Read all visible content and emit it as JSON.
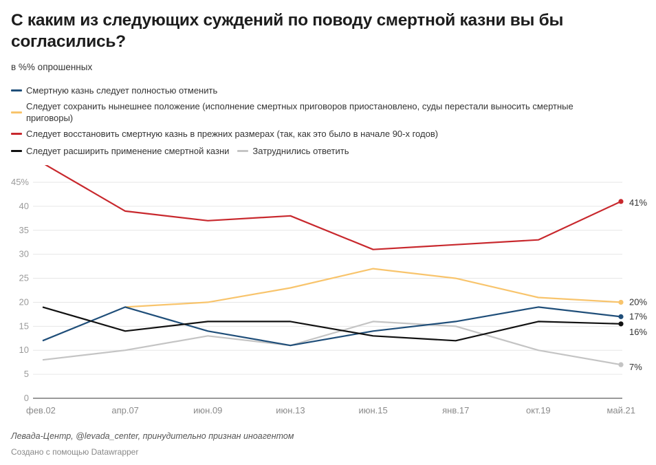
{
  "header": {
    "title": "С каким из следующих суждений по поводу смертной казни вы бы согласились?",
    "subtitle": "в %% опрошенных"
  },
  "footer": {
    "source": "Левада-Центр, @levada_center, принудительно признан иноагентом",
    "credit": "Создано с помощью Datawrapper"
  },
  "chart_data": {
    "type": "line",
    "title": "С каким из следующих суждений по поводу смертной казни вы бы согласились?",
    "subtitle": "в %% опрошенных",
    "xlabel": "",
    "ylabel": "",
    "ylim": [
      0,
      45
    ],
    "yticks": [
      0,
      5,
      10,
      15,
      20,
      25,
      30,
      35,
      40,
      45
    ],
    "ytick_labels": [
      "0",
      "5",
      "10",
      "15",
      "20",
      "25",
      "30",
      "35",
      "40",
      "45%"
    ],
    "grid": true,
    "legend_position": "top",
    "categories": [
      "фев.02",
      "апр.07",
      "июн.09",
      "июн.13",
      "июн.15",
      "янв.17",
      "окт.19",
      "май.21"
    ],
    "series": [
      {
        "name": "Смертную казнь следует полностью отменить",
        "color": "#1f4e79",
        "values": [
          12,
          19,
          14,
          11,
          14,
          16,
          19,
          17
        ],
        "end_label": "17%"
      },
      {
        "name": "Следует сохранить нынешнее положение (исполнение смертных приговоров приостановлено, суды перестали выносить смертные приговоры)",
        "color": "#f8c46c",
        "values": [
          null,
          19,
          20,
          23,
          27,
          25,
          21,
          20
        ],
        "end_label": "20%"
      },
      {
        "name": "Следует восстановить смертную казнь в прежних размерах (так, как это было в начале 90-х годов)",
        "color": "#c8282d",
        "values": [
          49,
          39,
          37,
          38,
          31,
          32,
          33,
          41
        ],
        "end_label": "41%"
      },
      {
        "name": "Следует расширить применение смертной казни",
        "color": "#111111",
        "values": [
          19,
          14,
          16,
          16,
          13,
          12,
          16,
          15.5
        ],
        "end_label": "16%"
      },
      {
        "name": "Затруднились ответить",
        "color": "#c4c4c4",
        "values": [
          8,
          10,
          13,
          11,
          16,
          15,
          10,
          7
        ],
        "end_label": "7%"
      }
    ]
  }
}
